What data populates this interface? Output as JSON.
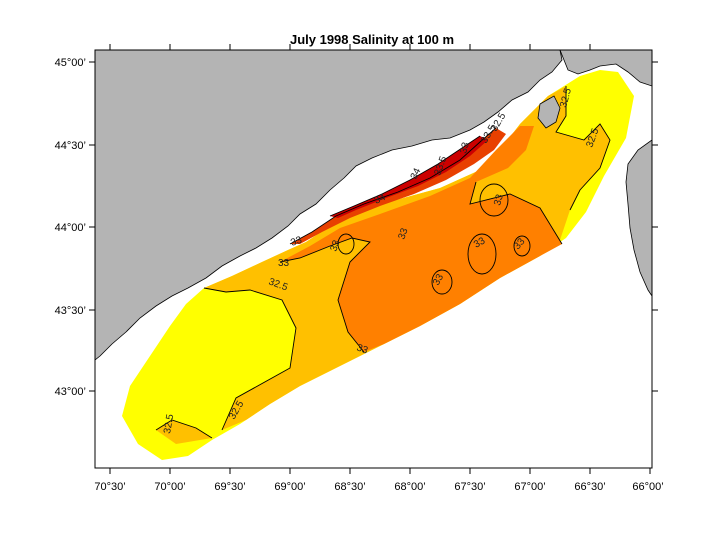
{
  "title": "July 1998  Salinity at 100 m",
  "x_ticks": [
    "70°30’",
    "70°00’",
    "69°30’",
    "69°00’",
    "68°30’",
    "68°00’",
    "67°30’",
    "67°00’",
    "66°30’",
    "66°00’"
  ],
  "y_ticks": [
    "45°00’",
    "44°30’",
    "44°00’",
    "43°30’",
    "43°00’"
  ],
  "contour_labels": [
    "32.5",
    "32.5",
    "32.5",
    "32.5",
    "32.5",
    "33",
    "33",
    "33",
    "33",
    "33",
    "33",
    "33",
    "33",
    "33",
    "33",
    "33.5",
    "34",
    "34",
    "33.5",
    "32.5"
  ],
  "colors": {
    "level_lt_32_5": "#ffff00",
    "level_32_5_33": "#ffc000",
    "level_33_33_5": "#ff8000",
    "level_33_5_34": "#e84000",
    "level_gt_34": "#cc0000",
    "land": "#b4b4b4"
  }
}
